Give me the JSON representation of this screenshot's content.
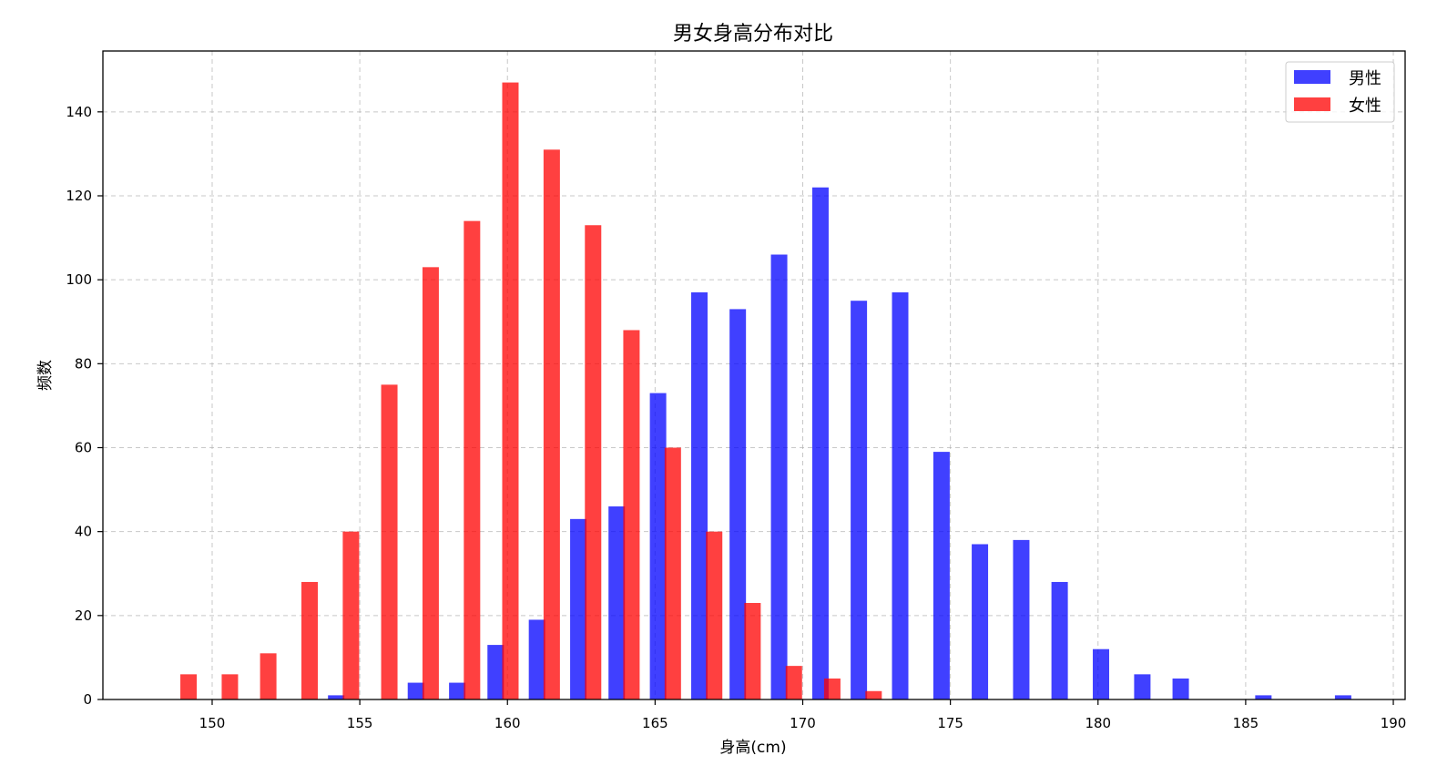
{
  "chart_data": {
    "type": "bar",
    "title": "男女身高分布对比",
    "xlabel": "身高(cm)",
    "ylabel": "频数",
    "xlim": [
      146.3,
      190.4
    ],
    "ylim": [
      0,
      154.5
    ],
    "xticks": [
      150,
      155,
      160,
      165,
      170,
      175,
      180,
      185,
      190
    ],
    "yticks": [
      0,
      20,
      40,
      60,
      80,
      100,
      120,
      140
    ],
    "grid": true,
    "legend_position": "top-right",
    "series": [
      {
        "name": "男性",
        "color": "#0000ff",
        "opacity": 0.75,
        "points": [
          {
            "x": 154.2,
            "y": 1
          },
          {
            "x": 156.9,
            "y": 4
          },
          {
            "x": 158.3,
            "y": 4
          },
          {
            "x": 159.6,
            "y": 13
          },
          {
            "x": 161.0,
            "y": 19
          },
          {
            "x": 162.4,
            "y": 43
          },
          {
            "x": 163.7,
            "y": 46
          },
          {
            "x": 165.1,
            "y": 73
          },
          {
            "x": 166.5,
            "y": 97
          },
          {
            "x": 167.8,
            "y": 93
          },
          {
            "x": 169.2,
            "y": 106
          },
          {
            "x": 170.6,
            "y": 122
          },
          {
            "x": 171.9,
            "y": 95
          },
          {
            "x": 173.3,
            "y": 97
          },
          {
            "x": 174.7,
            "y": 59
          },
          {
            "x": 176.0,
            "y": 37
          },
          {
            "x": 177.4,
            "y": 38
          },
          {
            "x": 178.7,
            "y": 28
          },
          {
            "x": 180.1,
            "y": 12
          },
          {
            "x": 181.5,
            "y": 6
          },
          {
            "x": 182.8,
            "y": 5
          },
          {
            "x": 185.6,
            "y": 1
          },
          {
            "x": 188.3,
            "y": 1
          }
        ]
      },
      {
        "name": "女性",
        "color": "#ff0000",
        "opacity": 0.75,
        "points": [
          {
            "x": 149.2,
            "y": 6
          },
          {
            "x": 150.6,
            "y": 6
          },
          {
            "x": 151.9,
            "y": 11
          },
          {
            "x": 153.3,
            "y": 28
          },
          {
            "x": 154.7,
            "y": 40
          },
          {
            "x": 156.0,
            "y": 75
          },
          {
            "x": 157.4,
            "y": 103
          },
          {
            "x": 158.8,
            "y": 114
          },
          {
            "x": 160.1,
            "y": 147
          },
          {
            "x": 161.5,
            "y": 131
          },
          {
            "x": 162.9,
            "y": 113
          },
          {
            "x": 164.2,
            "y": 88
          },
          {
            "x": 165.6,
            "y": 60
          },
          {
            "x": 167.0,
            "y": 40
          },
          {
            "x": 168.3,
            "y": 23
          },
          {
            "x": 169.7,
            "y": 8
          },
          {
            "x": 171.0,
            "y": 5
          },
          {
            "x": 172.4,
            "y": 2
          }
        ]
      }
    ]
  }
}
